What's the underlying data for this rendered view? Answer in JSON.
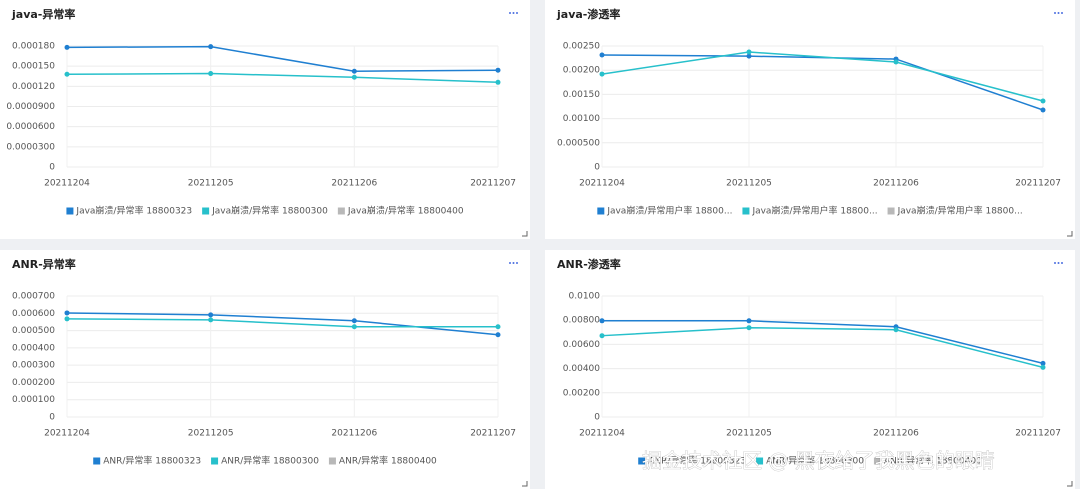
{
  "chart_data": [
    {
      "type": "line",
      "title": "java-异常率",
      "categories": [
        "20211204",
        "20211205",
        "20211206",
        "20211207"
      ],
      "series": [
        {
          "name": "Java崩溃/异常率 18800323",
          "color": "#1f7fd1",
          "values": [
            0.000178,
            0.000179,
            0.0001425,
            0.000144
          ]
        },
        {
          "name": "Java崩溃/异常率 18800300",
          "color": "#27c0cb",
          "values": [
            0.000138,
            0.000139,
            0.0001335,
            0.000126
          ]
        },
        {
          "name": "Java崩溃/异常率 18800400",
          "color": "#b8b8b8",
          "values": [
            null,
            null,
            null,
            null
          ]
        }
      ],
      "ylim": [
        0,
        0.00018
      ],
      "yticks": [
        0,
        {
          "value": 3e-05,
          "label": "0.0000300"
        },
        {
          "value": 6e-05,
          "label": "0.0000600"
        },
        {
          "value": 9e-05,
          "label": "0.0000900"
        },
        {
          "value": 0.00012,
          "label": "0.000120"
        },
        {
          "value": 0.00015,
          "label": "0.000150"
        },
        {
          "value": 0.00018,
          "label": "0.000180"
        }
      ],
      "grid": true
    },
    {
      "type": "line",
      "title": "java-渗透率",
      "categories": [
        "20211204",
        "20211205",
        "20211206",
        "20211207"
      ],
      "series": [
        {
          "name": "Java崩溃/异常用户率 18800...",
          "color": "#1f7fd1",
          "values": [
            0.002314,
            0.00229,
            0.00223,
            0.001178
          ]
        },
        {
          "name": "Java崩溃/异常用户率 18800...",
          "color": "#27c0cb",
          "values": [
            0.00192,
            0.002376,
            0.00217,
            0.001364
          ]
        },
        {
          "name": "Java崩溃/异常用户率 18800...",
          "color": "#b8b8b8",
          "values": [
            null,
            null,
            null,
            null
          ]
        }
      ],
      "ylim": [
        0,
        0.0025
      ],
      "yticks": [
        0,
        {
          "value": 0.0005,
          "label": "0.000500"
        },
        {
          "value": 0.001,
          "label": "0.00100"
        },
        {
          "value": 0.0015,
          "label": "0.00150"
        },
        {
          "value": 0.002,
          "label": "0.00200"
        },
        {
          "value": 0.0025,
          "label": "0.00250"
        }
      ],
      "grid": true
    },
    {
      "type": "line",
      "title": "ANR-异常率",
      "categories": [
        "20211204",
        "20211205",
        "20211206",
        "20211207"
      ],
      "series": [
        {
          "name": "ANR/异常率 18800323",
          "color": "#1f7fd1",
          "values": [
            0.000602,
            0.000591,
            0.000557,
            0.000476
          ]
        },
        {
          "name": "ANR/异常率 18800300",
          "color": "#27c0cb",
          "values": [
            0.000568,
            0.000562,
            0.000522,
            0.000522
          ]
        },
        {
          "name": "ANR/异常率 18800400",
          "color": "#b8b8b8",
          "values": [
            null,
            null,
            null,
            null
          ]
        }
      ],
      "ylim": [
        0,
        0.0007
      ],
      "yticks": [
        0,
        {
          "value": 0.0001,
          "label": "0.000100"
        },
        {
          "value": 0.0002,
          "label": "0.000200"
        },
        {
          "value": 0.0003,
          "label": "0.000300"
        },
        {
          "value": 0.0004,
          "label": "0.000400"
        },
        {
          "value": 0.0005,
          "label": "0.000500"
        },
        {
          "value": 0.0006,
          "label": "0.000600"
        },
        {
          "value": 0.0007,
          "label": "0.000700"
        }
      ],
      "grid": true
    },
    {
      "type": "line",
      "title": "ANR-渗透率",
      "categories": [
        "20211204",
        "20211205",
        "20211206",
        "20211207"
      ],
      "series": [
        {
          "name": "ANR/异常率 18800323",
          "color": "#1f7fd1",
          "values": [
            0.00795,
            0.00795,
            0.00746,
            0.00443
          ]
        },
        {
          "name": "ANR/异常率 18800300",
          "color": "#27c0cb",
          "values": [
            0.00672,
            0.00738,
            0.00721,
            0.0041
          ]
        },
        {
          "name": "ANR/异常率 18800400",
          "color": "#b8b8b8",
          "values": [
            null,
            null,
            null,
            null
          ]
        }
      ],
      "ylim": [
        0,
        0.01
      ],
      "yticks": [
        0,
        {
          "value": 0.002,
          "label": "0.00200"
        },
        {
          "value": 0.004,
          "label": "0.00400"
        },
        {
          "value": 0.006,
          "label": "0.00600"
        },
        {
          "value": 0.008,
          "label": "0.00800"
        },
        {
          "value": 0.01,
          "label": "0.0100"
        }
      ],
      "grid": true
    }
  ],
  "watermark": "掘金技术社区 @ 黑夜给了我黑色的眼睛"
}
